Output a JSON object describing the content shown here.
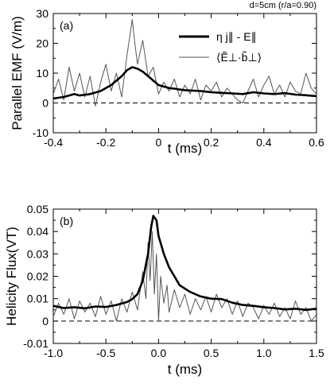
{
  "figure_annotation": "d=5cm (r/a=0.90)",
  "chart_data": [
    {
      "type": "line",
      "panel_label": "(a)",
      "xlabel": "t (ms)",
      "ylabel": "Parallel EMF (V/m)",
      "xlim": [
        -0.4,
        0.6
      ],
      "ylim": [
        -10,
        30
      ],
      "xticks": [
        -0.4,
        -0.2,
        0,
        0.2,
        0.4,
        0.6
      ],
      "xtick_labels": [
        "-0.4",
        "-0.2",
        "0",
        "0.2",
        "0.4",
        "0.6"
      ],
      "yticks": [
        -10,
        0,
        10,
        20,
        30
      ],
      "ytick_labels": [
        "-10",
        "0",
        "10",
        "20",
        "30"
      ],
      "zero_line": "dashed",
      "legend_position": "top-right",
      "legend_color_thick": "#000000",
      "legend_color_thin": "#555555",
      "series": [
        {
          "name": "η j∥ - E∥",
          "style": "thick",
          "x": [
            -0.4,
            -0.36,
            -0.32,
            -0.3,
            -0.26,
            -0.22,
            -0.2,
            -0.18,
            -0.16,
            -0.14,
            -0.12,
            -0.1,
            -0.08,
            -0.06,
            -0.04,
            -0.02,
            0,
            0.02,
            0.04,
            0.06,
            0.08,
            0.1,
            0.12,
            0.16,
            0.2,
            0.24,
            0.28,
            0.32,
            0.36,
            0.4,
            0.44,
            0.48,
            0.52,
            0.56,
            0.6
          ],
          "y": [
            1.5,
            2,
            3,
            2.5,
            3,
            4,
            5,
            6,
            7.5,
            9,
            11,
            12,
            11.5,
            10.5,
            9,
            7.5,
            6,
            5.5,
            5,
            4.8,
            4.5,
            4.3,
            4.2,
            4,
            3.6,
            3.4,
            3.2,
            3,
            3.6,
            3.2,
            3,
            3.3,
            2.8,
            2.6,
            2.3
          ]
        },
        {
          "name": "⟨Ẽ⊥·b̃⊥⟩",
          "style": "thin",
          "x": [
            -0.4,
            -0.38,
            -0.36,
            -0.34,
            -0.32,
            -0.3,
            -0.28,
            -0.26,
            -0.24,
            -0.22,
            -0.2,
            -0.18,
            -0.16,
            -0.14,
            -0.12,
            -0.1,
            -0.09,
            -0.08,
            -0.06,
            -0.04,
            -0.02,
            0,
            0.02,
            0.04,
            0.06,
            0.08,
            0.1,
            0.12,
            0.14,
            0.16,
            0.18,
            0.2,
            0.22,
            0.24,
            0.26,
            0.28,
            0.3,
            0.32,
            0.34,
            0.36,
            0.38,
            0.4,
            0.42,
            0.44,
            0.46,
            0.48,
            0.5,
            0.52,
            0.54,
            0.56,
            0.58,
            0.6
          ],
          "y": [
            3,
            8,
            1,
            12,
            4,
            10,
            2,
            9,
            -1,
            7,
            13,
            4,
            10,
            2,
            16,
            28,
            20,
            13,
            21,
            9,
            12,
            3,
            7,
            4,
            8,
            2,
            6,
            3,
            8,
            1,
            6,
            4,
            7,
            2,
            5,
            3,
            1,
            0,
            4,
            8,
            2,
            6,
            9,
            3,
            6,
            2,
            7,
            4,
            3,
            10,
            5,
            3
          ]
        }
      ]
    },
    {
      "type": "line",
      "panel_label": "(b)",
      "xlabel": "t (ms)",
      "ylabel": "Helicity Flux(VT)",
      "xlim": [
        -1.0,
        1.5
      ],
      "ylim": [
        -0.01,
        0.05
      ],
      "xticks": [
        -1.0,
        -0.5,
        0,
        0.5,
        1.0,
        1.5
      ],
      "xtick_labels": [
        "-1.0",
        "-0.5",
        "0.0",
        "0.5",
        "1.0",
        "1.5"
      ],
      "yticks": [
        -0.01,
        0,
        0.01,
        0.02,
        0.03,
        0.04,
        0.05
      ],
      "ytick_labels": [
        "-0.01",
        "0",
        "0.01",
        "0.02",
        "0.03",
        "0.04",
        "0.05"
      ],
      "zero_line": "dashed",
      "series": [
        {
          "style": "thick",
          "x": [
            -1,
            -0.9,
            -0.8,
            -0.7,
            -0.6,
            -0.5,
            -0.4,
            -0.3,
            -0.25,
            -0.2,
            -0.15,
            -0.1,
            -0.07,
            -0.05,
            -0.02,
            0,
            0.05,
            0.1,
            0.15,
            0.2,
            0.3,
            0.4,
            0.5,
            0.6,
            0.7,
            0.8,
            0.9,
            1,
            1.1,
            1.2,
            1.3,
            1.4,
            1.5
          ],
          "y": [
            0.0068,
            0.0058,
            0.0062,
            0.0057,
            0.0065,
            0.0063,
            0.0072,
            0.0085,
            0.0098,
            0.012,
            0.018,
            0.03,
            0.042,
            0.047,
            0.045,
            0.038,
            0.03,
            0.024,
            0.02,
            0.016,
            0.013,
            0.011,
            0.01,
            0.0098,
            0.0082,
            0.0072,
            0.0068,
            0.0062,
            0.0058,
            0.0052,
            0.0055,
            0.005,
            0.0055
          ]
        },
        {
          "style": "thin",
          "x": [
            -1,
            -0.95,
            -0.9,
            -0.85,
            -0.8,
            -0.75,
            -0.7,
            -0.65,
            -0.6,
            -0.55,
            -0.5,
            -0.45,
            -0.4,
            -0.35,
            -0.3,
            -0.25,
            -0.2,
            -0.15,
            -0.12,
            -0.1,
            -0.08,
            -0.06,
            -0.04,
            -0.02,
            0,
            0.02,
            0.05,
            0.08,
            0.1,
            0.15,
            0.2,
            0.25,
            0.3,
            0.35,
            0.4,
            0.45,
            0.5,
            0.55,
            0.6,
            0.65,
            0.7,
            0.75,
            0.8,
            0.85,
            0.9,
            0.95,
            1,
            1.05,
            1.1,
            1.15,
            1.2,
            1.25,
            1.3,
            1.35,
            1.4,
            1.45,
            1.5
          ],
          "y": [
            0.002,
            0.008,
            0.003,
            0.01,
            0.001,
            0.009,
            0.004,
            0.008,
            0.002,
            0.011,
            0.003,
            0.009,
            0.0,
            0.01,
            0.004,
            0.013,
            0.005,
            0.022,
            0.01,
            0.035,
            0.018,
            0.04,
            0.012,
            0.03,
            0.0,
            0.02,
            0.008,
            0.016,
            0.004,
            0.014,
            0.006,
            0.012,
            0.003,
            0.01,
            0.005,
            0.011,
            0.004,
            0.012,
            0.006,
            0.01,
            0.003,
            0.009,
            0.002,
            0.008,
            0.006,
            0.001,
            0.007,
            0.003,
            0.008,
            0.002,
            0.006,
            0.001,
            0.009,
            0.003,
            0.006,
            0.0,
            0.003
          ]
        }
      ]
    }
  ]
}
